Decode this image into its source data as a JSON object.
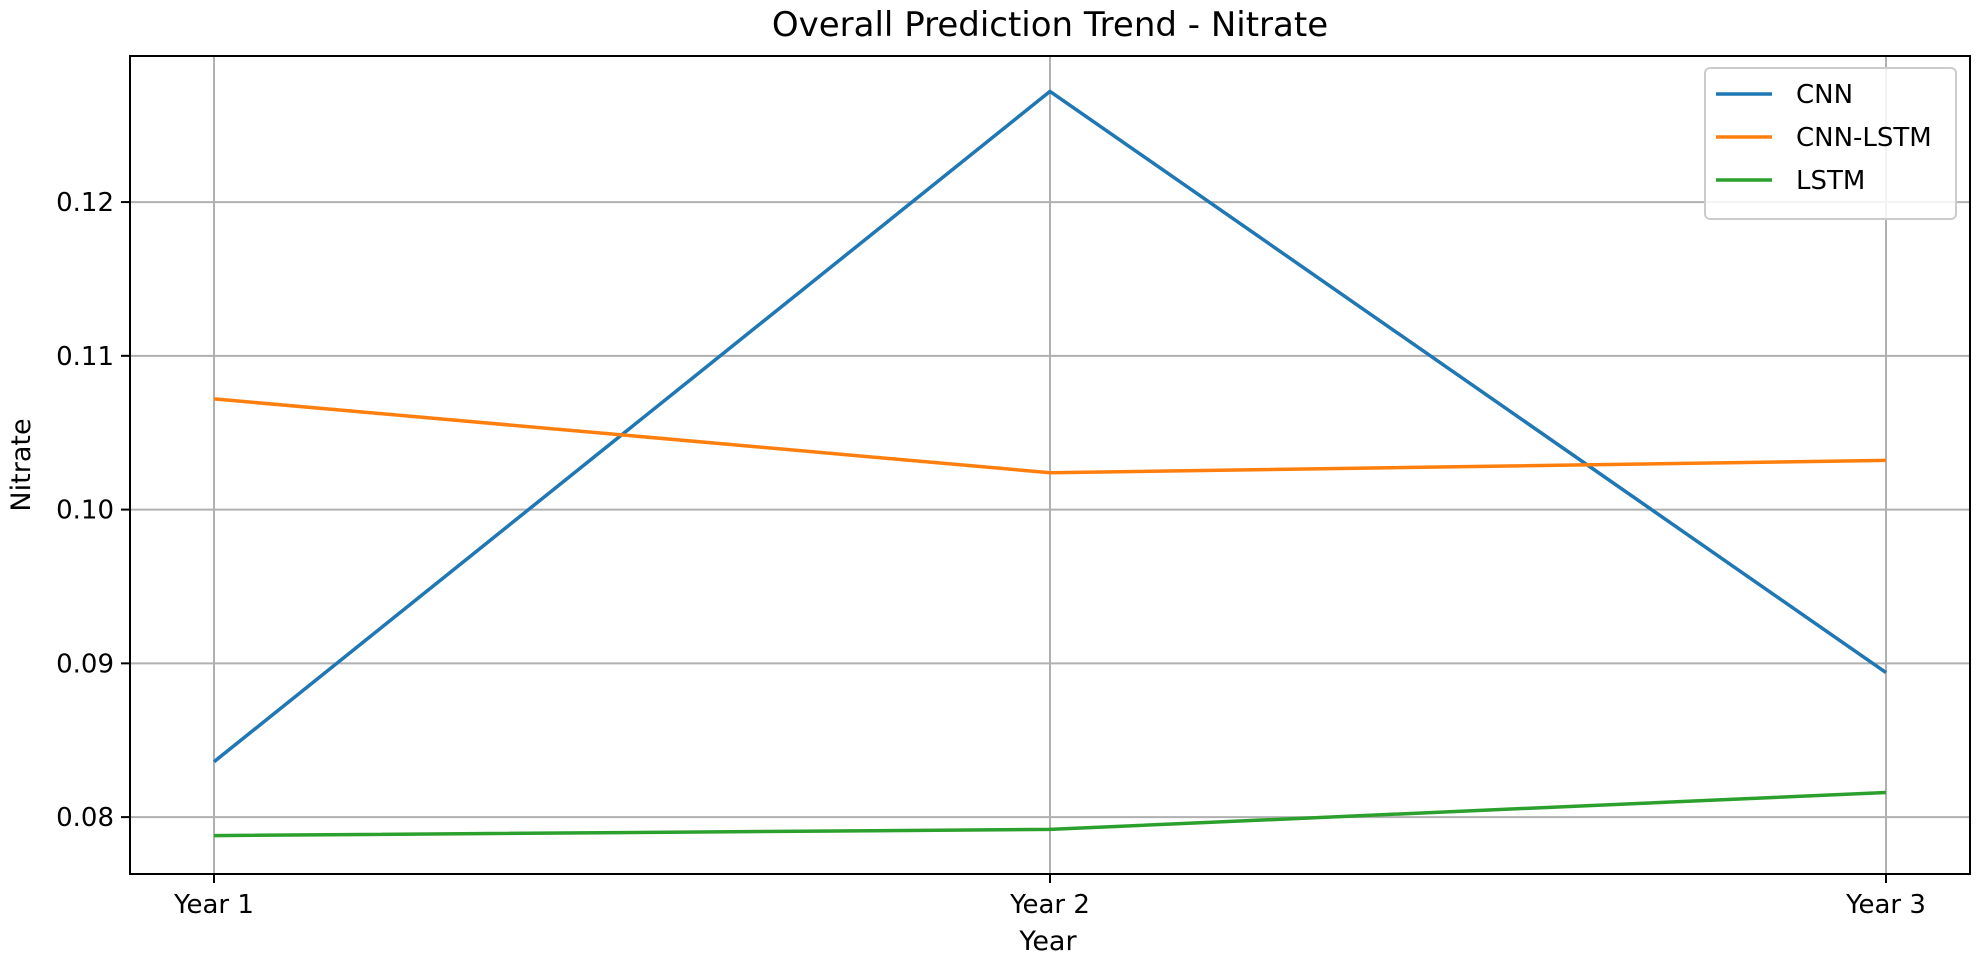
{
  "chart_data": {
    "type": "line",
    "title": "Overall Prediction Trend - Nitrate",
    "xlabel": "Year",
    "ylabel": "Nitrate",
    "categories": [
      "Year 1",
      "Year 2",
      "Year 3"
    ],
    "yticks": [
      0.08,
      0.09,
      0.1,
      0.11,
      0.12
    ],
    "ytick_labels": [
      "0.08",
      "0.09",
      "0.10",
      "0.11",
      "0.12"
    ],
    "ylim": [
      0.0763,
      0.1295
    ],
    "grid": true,
    "legend_position": "top-right",
    "series": [
      {
        "name": "CNN",
        "color": "#1f77b4",
        "values": [
          0.0836,
          0.1272,
          0.0894
        ]
      },
      {
        "name": "CNN-LSTM",
        "color": "#ff7f0e",
        "values": [
          0.1072,
          0.1024,
          0.1032
        ]
      },
      {
        "name": "LSTM",
        "color": "#2ca02c",
        "values": [
          0.0788,
          0.0792,
          0.0816
        ]
      }
    ]
  }
}
